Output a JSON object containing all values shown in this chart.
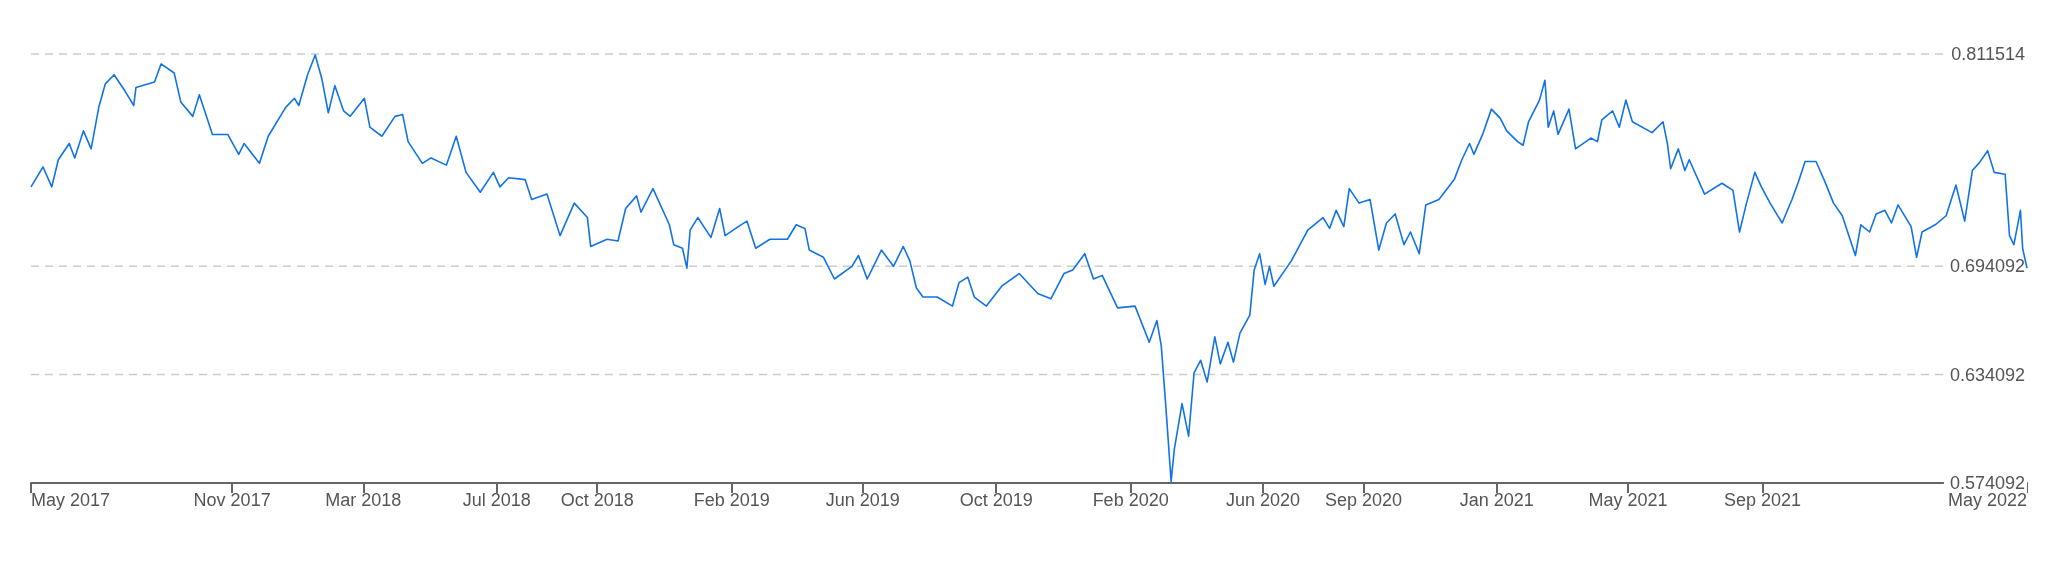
{
  "chart_data": {
    "type": "line",
    "grid": "y",
    "xlim": [
      "2017-05-01",
      "2022-05-01"
    ],
    "xticks": [
      {
        "value": "2017-05-01",
        "label": "May 2017"
      },
      {
        "value": "2017-11-01",
        "label": "Nov 2017"
      },
      {
        "value": "2018-03-01",
        "label": "Mar 2018"
      },
      {
        "value": "2018-07-01",
        "label": "Jul 2018"
      },
      {
        "value": "2018-10-01",
        "label": "Oct 2018"
      },
      {
        "value": "2019-02-01",
        "label": "Feb 2019"
      },
      {
        "value": "2019-06-01",
        "label": "Jun 2019"
      },
      {
        "value": "2019-10-01",
        "label": "Oct 2019"
      },
      {
        "value": "2020-02-01",
        "label": "Feb 2020"
      },
      {
        "value": "2020-06-01",
        "label": "Jun 2020"
      },
      {
        "value": "2020-09-01",
        "label": "Sep 2020"
      },
      {
        "value": "2021-01-01",
        "label": "Jan 2021"
      },
      {
        "value": "2021-05-01",
        "label": "May 2021"
      },
      {
        "value": "2021-09-01",
        "label": "Sep 2021"
      },
      {
        "value": "2022-05-01",
        "label": "May 2022"
      }
    ],
    "ylim": [
      0.574092,
      0.811514
    ],
    "yticks": [
      0.574092,
      0.634092,
      0.694092,
      0.811514
    ],
    "series": [
      {
        "color": "#1173e6",
        "x": [
          "2017-05-01",
          "2017-05-12",
          "2017-05-20",
          "2017-05-26",
          "2017-06-05",
          "2017-06-10",
          "2017-06-18",
          "2017-06-25",
          "2017-07-02",
          "2017-07-08",
          "2017-07-16",
          "2017-07-26",
          "2017-08-03",
          "2017-08-05",
          "2017-08-22",
          "2017-08-28",
          "2017-09-09",
          "2017-09-15",
          "2017-09-26",
          "2017-10-02",
          "2017-10-14",
          "2017-10-28",
          "2017-11-07",
          "2017-11-12",
          "2017-11-26",
          "2017-12-04",
          "2017-12-20",
          "2017-12-28",
          "2018-01-01",
          "2018-01-09",
          "2018-01-16",
          "2018-01-22",
          "2018-01-28",
          "2018-02-03",
          "2018-02-11",
          "2018-02-17",
          "2018-03-02",
          "2018-03-07",
          "2018-03-18",
          "2018-03-30",
          "2018-04-06",
          "2018-04-11",
          "2018-04-24",
          "2018-05-02",
          "2018-05-16",
          "2018-05-25",
          "2018-06-03",
          "2018-06-16",
          "2018-06-28",
          "2018-07-04",
          "2018-07-12",
          "2018-07-27",
          "2018-08-02",
          "2018-08-16",
          "2018-08-28",
          "2018-09-10",
          "2018-09-22",
          "2018-09-25",
          "2018-10-10",
          "2018-10-20",
          "2018-10-27",
          "2018-11-06",
          "2018-11-10",
          "2018-11-21",
          "2018-12-06",
          "2018-12-10",
          "2018-12-18",
          "2018-12-22",
          "2018-12-25",
          "2019-01-01",
          "2019-01-13",
          "2019-01-21",
          "2019-01-26",
          "2019-02-07",
          "2019-02-15",
          "2019-02-23",
          "2019-03-08",
          "2019-03-24",
          "2019-04-01",
          "2019-04-09",
          "2019-04-13",
          "2019-04-26",
          "2019-05-06",
          "2019-05-22",
          "2019-05-28",
          "2019-06-05",
          "2019-06-18",
          "2019-06-29",
          "2019-07-08",
          "2019-07-14",
          "2019-07-20",
          "2019-07-26",
          "2019-08-08",
          "2019-08-22",
          "2019-08-28",
          "2019-09-05",
          "2019-09-11",
          "2019-09-22",
          "2019-10-06",
          "2019-10-22",
          "2019-11-08",
          "2019-11-20",
          "2019-12-02",
          "2019-12-10",
          "2019-12-21",
          "2019-12-29",
          "2020-01-06",
          "2020-01-20",
          "2020-02-05",
          "2020-02-18",
          "2020-02-25",
          "2020-02-29",
          "2020-03-04",
          "2020-03-09",
          "2020-03-12",
          "2020-03-19",
          "2020-03-25",
          "2020-03-30",
          "2020-04-05",
          "2020-04-11",
          "2020-04-18",
          "2020-04-23",
          "2020-04-30",
          "2020-05-05",
          "2020-05-11",
          "2020-05-20",
          "2020-05-24",
          "2020-05-29",
          "2020-06-03",
          "2020-06-07",
          "2020-06-11",
          "2020-06-27",
          "2020-07-12",
          "2020-07-26",
          "2020-08-01",
          "2020-08-07",
          "2020-08-14",
          "2020-08-19",
          "2020-08-28",
          "2020-09-07",
          "2020-09-15",
          "2020-09-22",
          "2020-09-30",
          "2020-10-08",
          "2020-10-14",
          "2020-10-22",
          "2020-10-28",
          "2020-11-09",
          "2020-11-23",
          "2020-11-30",
          "2020-12-07",
          "2020-12-11",
          "2020-12-19",
          "2020-12-27",
          "2021-01-04",
          "2021-01-10",
          "2021-01-20",
          "2021-01-25",
          "2021-01-30",
          "2021-02-09",
          "2021-02-14",
          "2021-02-17",
          "2021-02-22",
          "2021-02-26",
          "2021-03-08",
          "2021-03-14",
          "2021-03-28",
          "2021-04-03",
          "2021-04-07",
          "2021-04-17",
          "2021-04-23",
          "2021-04-29",
          "2021-05-05",
          "2021-05-23",
          "2021-06-02",
          "2021-06-06",
          "2021-06-09",
          "2021-06-16",
          "2021-06-22",
          "2021-06-26",
          "2021-07-10",
          "2021-07-26",
          "2021-08-05",
          "2021-08-11",
          "2021-08-17",
          "2021-08-25",
          "2021-08-31",
          "2021-09-08",
          "2021-09-19",
          "2021-09-28",
          "2021-10-04",
          "2021-10-10",
          "2021-10-20",
          "2021-10-28",
          "2021-11-05",
          "2021-11-13",
          "2021-11-25",
          "2021-11-30",
          "2021-12-08",
          "2021-12-14",
          "2021-12-22",
          "2021-12-28",
          "2022-01-03",
          "2022-01-15",
          "2022-01-20",
          "2022-01-25",
          "2022-02-06",
          "2022-02-16",
          "2022-02-25",
          "2022-03-05",
          "2022-03-12",
          "2022-03-18",
          "2022-03-26",
          "2022-04-01",
          "2022-04-11",
          "2022-04-15",
          "2022-04-19",
          "2022-04-25",
          "2022-04-27",
          "2022-05-01"
        ],
        "values": [
          0.738,
          0.749,
          0.738,
          0.753,
          0.762,
          0.754,
          0.769,
          0.759,
          0.782,
          0.795,
          0.8,
          0.791,
          0.783,
          0.793,
          0.796,
          0.806,
          0.801,
          0.785,
          0.777,
          0.789,
          0.767,
          0.767,
          0.756,
          0.762,
          0.751,
          0.766,
          0.782,
          0.787,
          0.783,
          0.8,
          0.811,
          0.798,
          0.779,
          0.794,
          0.78,
          0.777,
          0.787,
          0.771,
          0.766,
          0.777,
          0.778,
          0.763,
          0.751,
          0.754,
          0.75,
          0.766,
          0.746,
          0.735,
          0.746,
          0.738,
          0.743,
          0.742,
          0.731,
          0.734,
          0.711,
          0.729,
          0.721,
          0.705,
          0.709,
          0.708,
          0.726,
          0.733,
          0.724,
          0.737,
          0.717,
          0.706,
          0.704,
          0.693,
          0.714,
          0.721,
          0.71,
          0.726,
          0.711,
          0.716,
          0.719,
          0.704,
          0.709,
          0.709,
          0.717,
          0.715,
          0.703,
          0.699,
          0.687,
          0.694,
          0.7,
          0.687,
          0.703,
          0.694,
          0.705,
          0.697,
          0.682,
          0.677,
          0.677,
          0.672,
          0.685,
          0.688,
          0.677,
          0.672,
          0.683,
          0.69,
          0.679,
          0.676,
          0.69,
          0.692,
          0.701,
          0.687,
          0.689,
          0.671,
          0.672,
          0.652,
          0.664,
          0.65,
          0.618,
          0.575,
          0.593,
          0.618,
          0.6,
          0.635,
          0.642,
          0.63,
          0.655,
          0.64,
          0.652,
          0.641,
          0.657,
          0.667,
          0.692,
          0.701,
          0.684,
          0.694,
          0.683,
          0.697,
          0.714,
          0.721,
          0.715,
          0.725,
          0.716,
          0.737,
          0.729,
          0.731,
          0.703,
          0.718,
          0.723,
          0.706,
          0.713,
          0.701,
          0.728,
          0.731,
          0.742,
          0.753,
          0.762,
          0.756,
          0.767,
          0.781,
          0.776,
          0.769,
          0.763,
          0.761,
          0.774,
          0.786,
          0.797,
          0.771,
          0.78,
          0.767,
          0.781,
          0.759,
          0.765,
          0.763,
          0.775,
          0.78,
          0.771,
          0.786,
          0.774,
          0.768,
          0.774,
          0.762,
          0.748,
          0.759,
          0.747,
          0.753,
          0.734,
          0.74,
          0.736,
          0.713,
          0.728,
          0.746,
          0.738,
          0.729,
          0.718,
          0.731,
          0.741,
          0.752,
          0.752,
          0.741,
          0.729,
          0.722,
          0.7,
          0.717,
          0.713,
          0.723,
          0.725,
          0.718,
          0.728,
          0.716,
          0.699,
          0.713,
          0.717,
          0.722,
          0.739,
          0.719,
          0.747,
          0.751,
          0.758,
          0.746,
          0.745,
          0.711,
          0.706,
          0.725,
          0.704,
          0.693
        ]
      }
    ]
  }
}
